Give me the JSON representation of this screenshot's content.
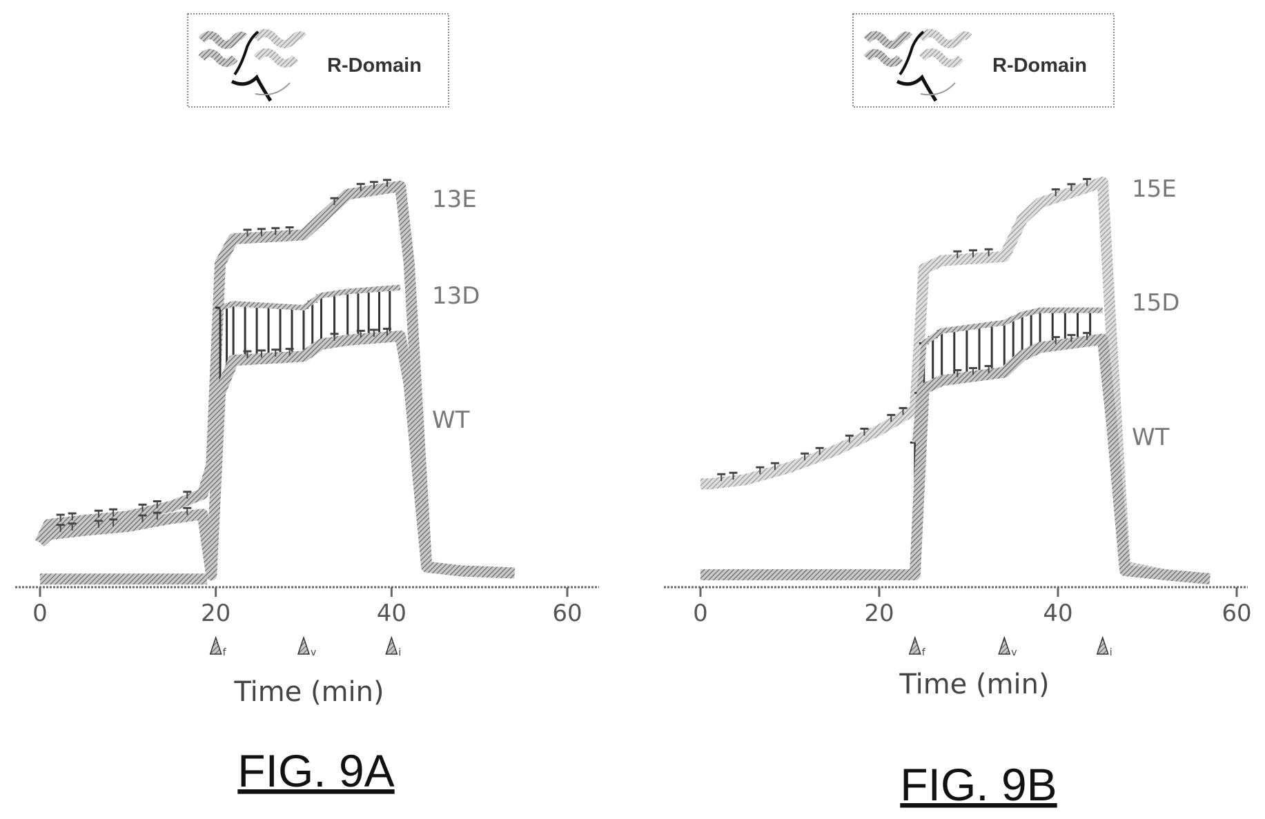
{
  "colors": {
    "trace": "#8f8f8f",
    "trace_light": "#b4b4b4",
    "axis": "#555555",
    "ink": "#111111"
  },
  "chart_data": [
    {
      "type": "line",
      "figure_label": "FIG. 9A",
      "inset_label": "R-Domain",
      "xlabel": "Time (min)",
      "ylabel": "",
      "xlim": [
        0,
        60
      ],
      "x_ticks": [
        "0",
        "20",
        "40",
        "60"
      ],
      "arrow_markers": [
        {
          "x": 20,
          "label": "f"
        },
        {
          "x": 30,
          "label": "v"
        },
        {
          "x": 40,
          "label": "i"
        }
      ],
      "series": [
        {
          "name": "13E",
          "x": [
            0,
            1,
            5,
            10,
            15,
            18.5,
            19.5,
            20.5,
            22,
            30,
            32,
            35,
            41,
            42,
            44,
            48,
            54
          ],
          "y": [
            0.11,
            0.155,
            0.165,
            0.175,
            0.2,
            0.23,
            0.3,
            0.8,
            0.86,
            0.87,
            0.91,
            0.97,
            0.99,
            0.8,
            0.05,
            0.04,
            0.035
          ]
        },
        {
          "name": "13D",
          "x": [
            20.5,
            22,
            30,
            32,
            35,
            41
          ],
          "y": [
            0.69,
            0.7,
            0.69,
            0.72,
            0.73,
            0.74
          ]
        },
        {
          "name": "WT",
          "x": [
            0,
            1,
            5,
            10,
            15,
            18.5,
            19.5,
            20.5,
            22,
            30,
            32,
            35,
            41,
            42,
            44,
            48,
            54
          ],
          "y": [
            0.11,
            0.13,
            0.14,
            0.15,
            0.17,
            0.18,
            0.03,
            0.48,
            0.56,
            0.57,
            0.6,
            0.61,
            0.62,
            0.5,
            0.05,
            0.04,
            0.035
          ]
        },
        {
          "name": "baseline",
          "x": [
            0,
            19
          ],
          "y": [
            0.02,
            0.02
          ]
        }
      ]
    },
    {
      "type": "line",
      "figure_label": "FIG. 9B",
      "inset_label": "R-Domain",
      "xlabel": "Time (min)",
      "ylabel": "",
      "xlim": [
        0,
        60
      ],
      "x_ticks": [
        "0",
        "20",
        "40",
        "60"
      ],
      "arrow_markers": [
        {
          "x": 24,
          "label": "f"
        },
        {
          "x": 34,
          "label": "v"
        },
        {
          "x": 45,
          "label": "i"
        }
      ],
      "series": [
        {
          "name": "15E",
          "x": [
            0,
            1,
            5,
            10,
            15,
            20,
            24,
            25,
            27,
            34,
            36,
            38,
            45,
            46,
            47.5,
            52,
            57
          ],
          "y": [
            0.25,
            0.25,
            0.26,
            0.29,
            0.33,
            0.38,
            0.43,
            0.77,
            0.79,
            0.8,
            0.89,
            0.93,
            0.98,
            0.6,
            0.05,
            0.03,
            0.02
          ]
        },
        {
          "name": "15D",
          "x": [
            24,
            25,
            27,
            34,
            36,
            38,
            45
          ],
          "y": [
            0.35,
            0.59,
            0.62,
            0.64,
            0.66,
            0.67,
            0.67
          ]
        },
        {
          "name": "WT",
          "x": [
            0,
            1,
            5,
            10,
            15,
            20,
            24,
            25,
            27,
            34,
            36,
            38,
            45,
            46,
            47.5,
            52,
            57
          ],
          "y": [
            0.03,
            0.03,
            0.03,
            0.03,
            0.03,
            0.03,
            0.03,
            0.48,
            0.5,
            0.52,
            0.56,
            0.58,
            0.6,
            0.4,
            0.04,
            0.03,
            0.02
          ]
        }
      ]
    }
  ]
}
